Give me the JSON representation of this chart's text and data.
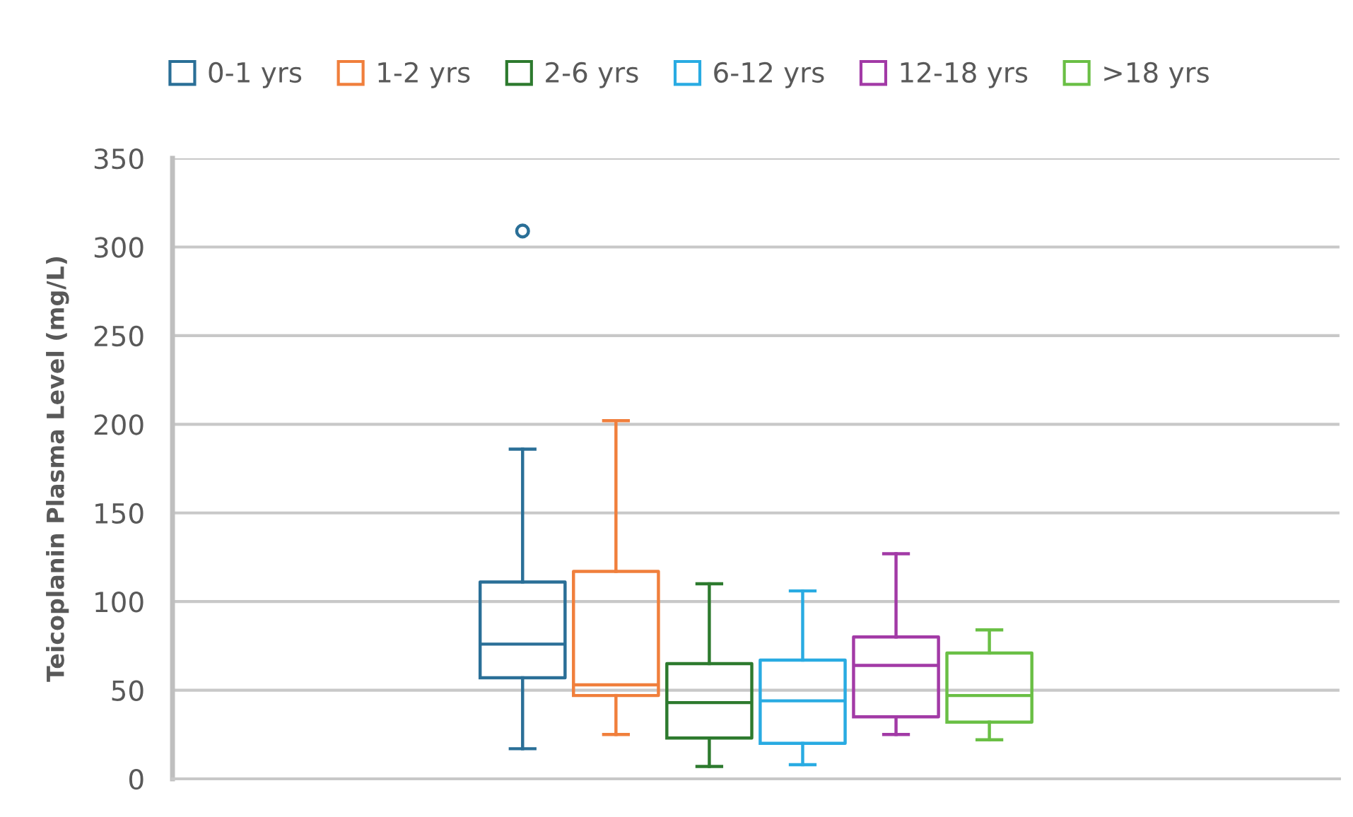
{
  "chart_data": {
    "type": "box",
    "ylabel": "Teicoplanin Plasma Level (mg/L)",
    "categories": [
      null
    ],
    "series": [
      {
        "name": "0-1 yrs",
        "color": "#2a6f97",
        "boxes": [
          {
            "low": 17,
            "q1": 57,
            "median": 76,
            "q3": 111,
            "high": 186,
            "outliers": [
              309
            ]
          }
        ]
      },
      {
        "name": "1-2 yrs",
        "color": "#f07f3c",
        "boxes": [
          {
            "low": 25,
            "q1": 47,
            "median": 53,
            "q3": 117,
            "high": 202
          }
        ]
      },
      {
        "name": "2-6 yrs",
        "color": "#2d7a2e",
        "boxes": [
          {
            "low": 7,
            "q1": 23,
            "median": 43,
            "q3": 65,
            "high": 110
          }
        ]
      },
      {
        "name": "6-12 yrs",
        "color": "#29abe2",
        "boxes": [
          {
            "low": 8,
            "q1": 20,
            "median": 44,
            "q3": 67,
            "high": 106
          }
        ]
      },
      {
        "name": "12-18 yrs",
        "color": "#a23aa6",
        "boxes": [
          {
            "low": 25,
            "q1": 35,
            "median": 64,
            "q3": 80,
            "high": 127
          }
        ]
      },
      {
        "name": ">18 yrs",
        "color": "#6abf45",
        "boxes": [
          {
            "low": 22,
            "q1": 32,
            "median": 47,
            "q3": 71,
            "high": 84
          }
        ]
      }
    ],
    "ylim": [
      0,
      350
    ],
    "yticks": [
      0,
      50,
      100,
      150,
      200,
      250,
      300,
      350
    ],
    "grid": "y",
    "legend": "top"
  }
}
